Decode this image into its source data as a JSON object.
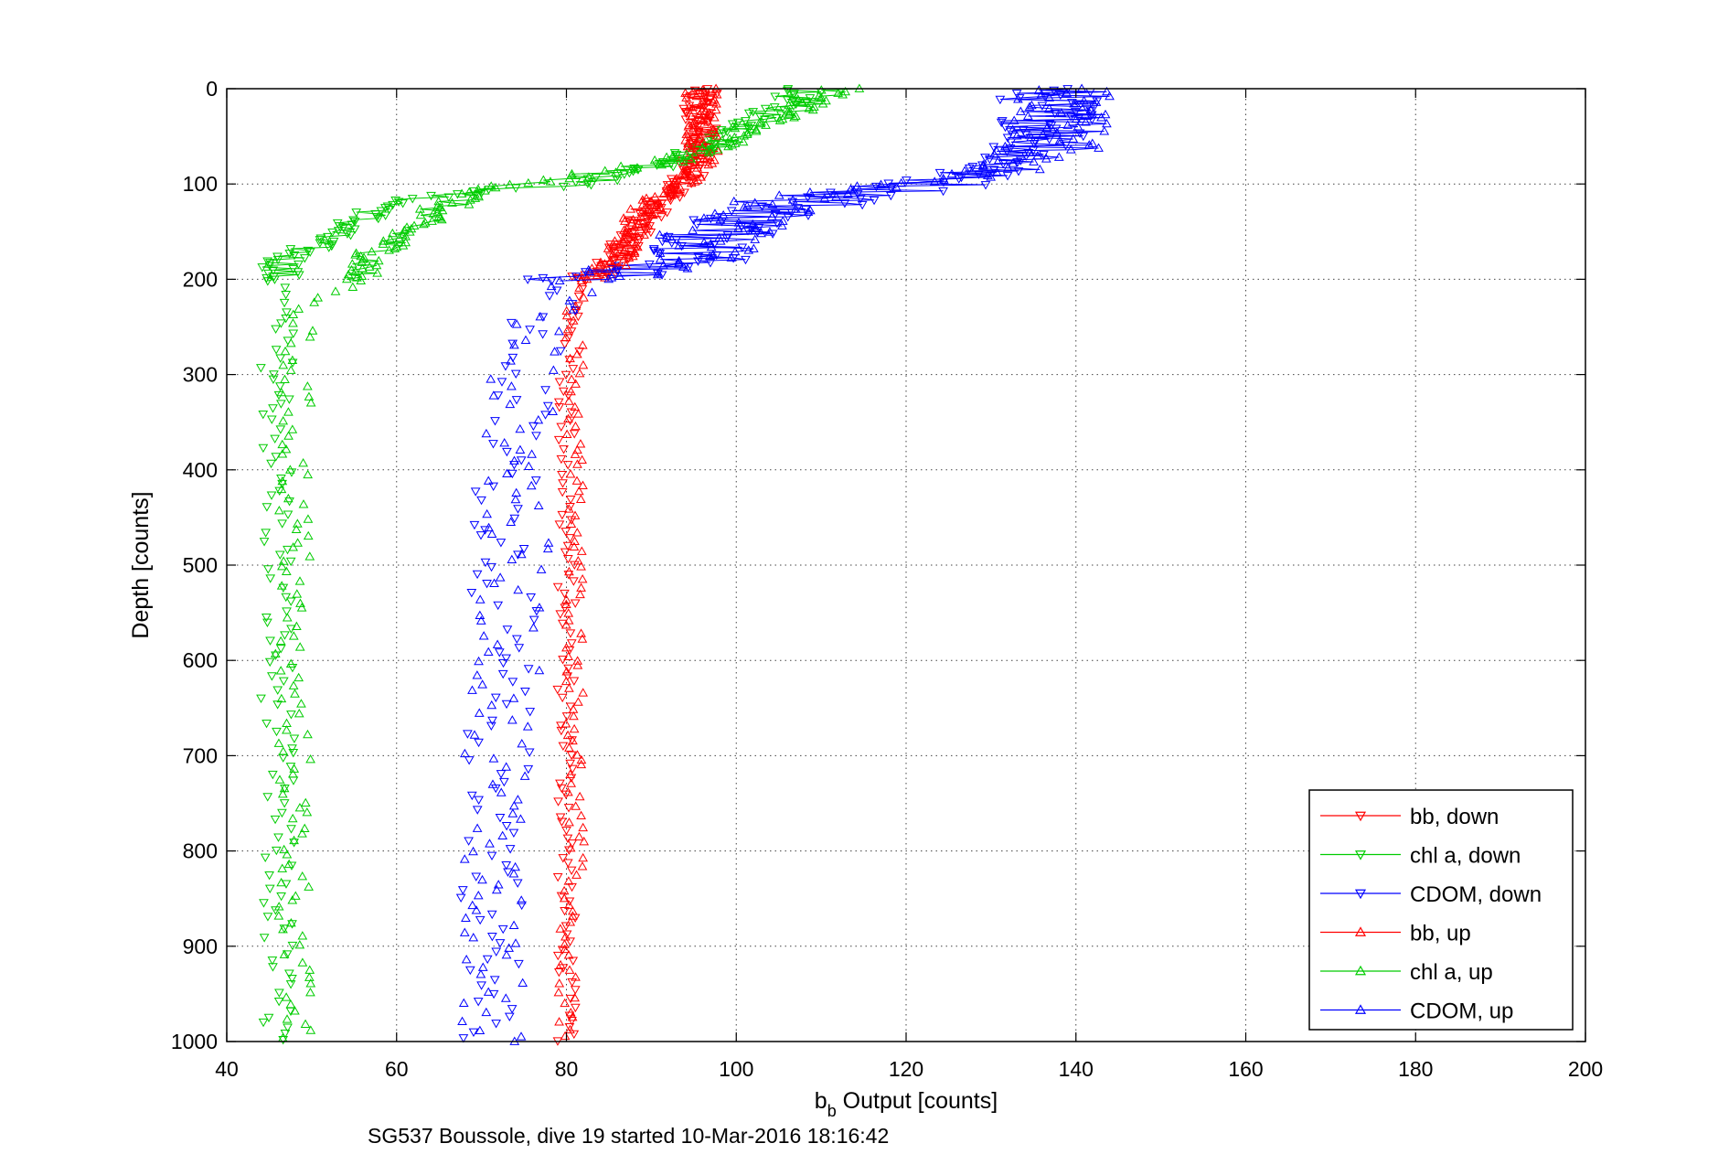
{
  "chart_data": {
    "type": "scatter",
    "title": "",
    "xlabel": "b",
    "xlabel_subscript": "b",
    "xlabel_suffix": " Output [counts]",
    "ylabel": "Depth [counts]",
    "caption": "SG537 Boussole, dive 19 started 10-Mar-2016 18:16:42",
    "xlim": [
      40,
      200
    ],
    "ylim": [
      1000,
      0
    ],
    "y_reversed": true,
    "grid": true,
    "legend_placement": "bottom-right",
    "xticks": [
      "40",
      "60",
      "80",
      "100",
      "120",
      "140",
      "160",
      "180",
      "200"
    ],
    "yticks": [
      "0",
      "100",
      "200",
      "300",
      "400",
      "500",
      "600",
      "700",
      "800",
      "900",
      "1000"
    ],
    "colors": {
      "bb": "#ff0000",
      "chl": "#00cc00",
      "cdom": "#0000ff"
    },
    "series": [
      {
        "name": "bb, down",
        "color": "#ff0000",
        "marker": "triangle-down",
        "profile": [
          [
            0,
            96
          ],
          [
            20,
            95
          ],
          [
            40,
            96
          ],
          [
            60,
            95.5
          ],
          [
            80,
            95
          ],
          [
            100,
            94
          ],
          [
            120,
            91
          ],
          [
            140,
            89
          ],
          [
            160,
            87
          ],
          [
            180,
            86
          ],
          [
            200,
            82
          ],
          [
            220,
            81
          ],
          [
            250,
            81
          ],
          [
            300,
            80
          ],
          [
            350,
            80
          ],
          [
            400,
            80
          ],
          [
            450,
            80
          ],
          [
            500,
            80
          ],
          [
            550,
            80
          ],
          [
            600,
            80
          ],
          [
            650,
            80
          ],
          [
            700,
            80
          ],
          [
            750,
            80
          ],
          [
            800,
            80
          ],
          [
            850,
            80
          ],
          [
            900,
            80
          ],
          [
            950,
            80
          ],
          [
            1000,
            80
          ]
        ]
      },
      {
        "name": "chl a, down",
        "color": "#00cc00",
        "marker": "triangle-down",
        "profile": [
          [
            0,
            108
          ],
          [
            20,
            105
          ],
          [
            40,
            101
          ],
          [
            60,
            97
          ],
          [
            80,
            92
          ],
          [
            100,
            82
          ],
          [
            110,
            66
          ],
          [
            120,
            60
          ],
          [
            140,
            55
          ],
          [
            160,
            51
          ],
          [
            180,
            47
          ],
          [
            200,
            46
          ],
          [
            250,
            46
          ],
          [
            300,
            46
          ],
          [
            400,
            46
          ],
          [
            500,
            46
          ],
          [
            600,
            46
          ],
          [
            700,
            46
          ],
          [
            800,
            46
          ],
          [
            900,
            46
          ],
          [
            1000,
            46
          ]
        ]
      },
      {
        "name": "CDOM, down",
        "color": "#0000ff",
        "marker": "triangle-down",
        "profile": [
          [
            0,
            135
          ],
          [
            20,
            136
          ],
          [
            40,
            136
          ],
          [
            60,
            135
          ],
          [
            80,
            130
          ],
          [
            100,
            122
          ],
          [
            120,
            108
          ],
          [
            140,
            98
          ],
          [
            160,
            96
          ],
          [
            180,
            94
          ],
          [
            200,
            80
          ],
          [
            250,
            76
          ],
          [
            300,
            75
          ],
          [
            400,
            73
          ],
          [
            500,
            73
          ],
          [
            600,
            72
          ],
          [
            700,
            72
          ],
          [
            800,
            72
          ],
          [
            900,
            71
          ],
          [
            1000,
            71
          ]
        ]
      },
      {
        "name": "bb, up",
        "color": "#ff0000",
        "marker": "triangle-up",
        "profile": [
          [
            0,
            96
          ],
          [
            20,
            96
          ],
          [
            40,
            96
          ],
          [
            60,
            96
          ],
          [
            80,
            96
          ],
          [
            100,
            93
          ],
          [
            120,
            90
          ],
          [
            140,
            88
          ],
          [
            160,
            87
          ],
          [
            180,
            86
          ],
          [
            200,
            83
          ],
          [
            220,
            81
          ],
          [
            250,
            81
          ],
          [
            300,
            81
          ],
          [
            400,
            81
          ],
          [
            500,
            81
          ],
          [
            600,
            81
          ],
          [
            700,
            81
          ],
          [
            800,
            81
          ],
          [
            900,
            80
          ],
          [
            1000,
            80
          ]
        ]
      },
      {
        "name": "chl a, up",
        "color": "#00cc00",
        "marker": "triangle-up",
        "profile": [
          [
            0,
            112
          ],
          [
            20,
            108
          ],
          [
            40,
            102
          ],
          [
            60,
            98
          ],
          [
            80,
            90
          ],
          [
            100,
            75
          ],
          [
            110,
            69
          ],
          [
            130,
            64
          ],
          [
            150,
            61
          ],
          [
            170,
            58
          ],
          [
            190,
            56
          ],
          [
            200,
            55
          ],
          [
            220,
            50
          ],
          [
            260,
            48
          ],
          [
            300,
            48
          ],
          [
            400,
            48
          ],
          [
            500,
            48
          ],
          [
            600,
            47
          ],
          [
            700,
            48
          ],
          [
            800,
            48
          ],
          [
            900,
            48
          ],
          [
            1000,
            48
          ]
        ]
      },
      {
        "name": "CDOM, up",
        "color": "#0000ff",
        "marker": "triangle-up",
        "profile": [
          [
            0,
            137
          ],
          [
            20,
            138
          ],
          [
            40,
            137
          ],
          [
            60,
            136
          ],
          [
            80,
            133
          ],
          [
            100,
            120
          ],
          [
            120,
            103
          ],
          [
            140,
            97
          ],
          [
            160,
            95
          ],
          [
            180,
            92
          ],
          [
            200,
            82
          ],
          [
            250,
            76
          ],
          [
            300,
            75
          ],
          [
            400,
            74
          ],
          [
            500,
            74
          ],
          [
            600,
            73
          ],
          [
            700,
            72
          ],
          [
            800,
            72
          ],
          [
            900,
            71
          ],
          [
            1000,
            71
          ]
        ]
      }
    ]
  }
}
